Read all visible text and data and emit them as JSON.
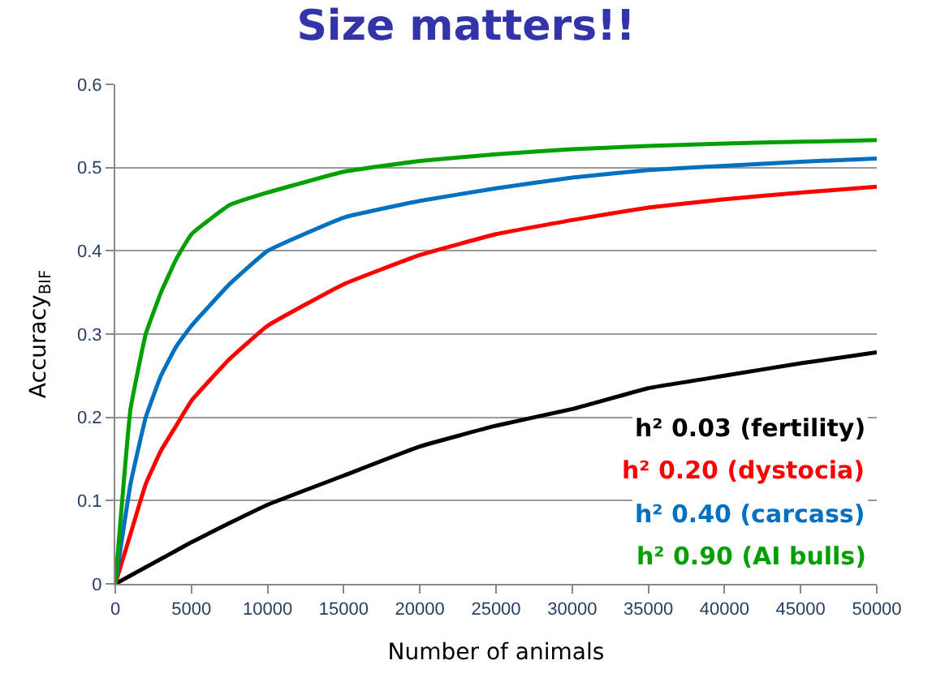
{
  "chart_data": {
    "type": "line",
    "title": "Size matters!!",
    "xlabel": "Number of animals",
    "ylabel": "Accuracy$_{BIF}$",
    "xlim": [
      0,
      50000
    ],
    "xticks": [
      0,
      5000,
      10000,
      15000,
      20000,
      25000,
      30000,
      35000,
      40000,
      45000,
      50000
    ],
    "ylim": [
      0,
      0.6
    ],
    "yticks": [
      0,
      0.1,
      0.2,
      0.3,
      0.4,
      0.5,
      0.6
    ],
    "grid": "y",
    "legend": "bottom right",
    "marker": "none",
    "line_style": "solid",
    "x": [
      0,
      1000,
      2000,
      3000,
      4000,
      5000,
      7500,
      10000,
      15000,
      20000,
      25000,
      30000,
      35000,
      40000,
      45000,
      50000
    ],
    "series": [
      {
        "name": "h² 0.03 (fertility)",
        "color": "#000000",
        "values": [
          0,
          0.01,
          0.02,
          0.03,
          0.04,
          0.05,
          0.073,
          0.095,
          0.13,
          0.165,
          0.19,
          0.21,
          0.235,
          0.25,
          0.265,
          0.278
        ]
      },
      {
        "name": "h² 0.20 (dystocia)",
        "color": "#ff0000",
        "values": [
          0,
          0.06,
          0.12,
          0.16,
          0.19,
          0.22,
          0.27,
          0.31,
          0.36,
          0.395,
          0.42,
          0.437,
          0.452,
          0.462,
          0.47,
          0.477
        ]
      },
      {
        "name": "h² 0.40 (carcass)",
        "color": "#0070c0",
        "values": [
          0,
          0.12,
          0.2,
          0.25,
          0.285,
          0.31,
          0.36,
          0.4,
          0.44,
          0.46,
          0.475,
          0.488,
          0.497,
          0.502,
          0.507,
          0.511
        ]
      },
      {
        "name": "h² 0.90 (AI bulls)",
        "color": "#00a000",
        "values": [
          0,
          0.21,
          0.3,
          0.35,
          0.39,
          0.42,
          0.455,
          0.47,
          0.495,
          0.508,
          0.516,
          0.522,
          0.526,
          0.529,
          0.531,
          0.533
        ]
      }
    ]
  }
}
